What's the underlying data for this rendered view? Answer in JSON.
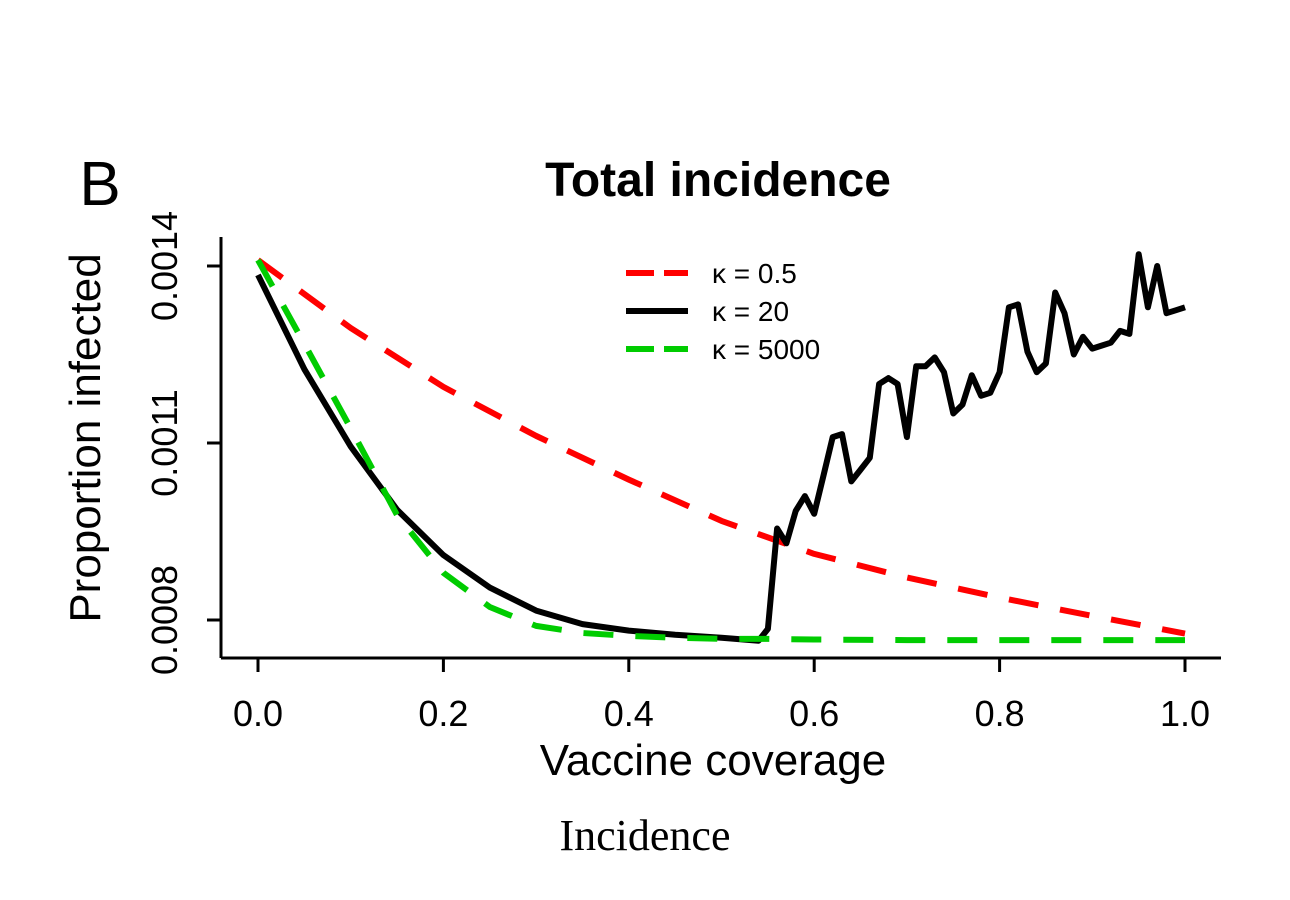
{
  "panel_label": "B",
  "caption": "Incidence",
  "colors": {
    "red": "#ff0000",
    "black": "#000000",
    "green": "#00cc00"
  },
  "chart_data": {
    "type": "line",
    "title": "Total incidence",
    "xlabel": "Vaccine coverage",
    "ylabel": "Proportion infected",
    "xlim": [
      0.0,
      1.0
    ],
    "ylim": [
      0.00074,
      0.00147
    ],
    "xticks": [
      0.0,
      0.2,
      0.4,
      0.6,
      0.8,
      1.0
    ],
    "xtick_labels": [
      "0.0",
      "0.2",
      "0.4",
      "0.6",
      "0.8",
      "1.0"
    ],
    "yticks": [
      0.0008,
      0.0011,
      0.0014
    ],
    "ytick_labels": [
      "0.0008",
      "0.0011",
      "0.0014"
    ],
    "legend_position": "top-center",
    "series": [
      {
        "name": "κ = 0.5",
        "color": "#ff0000",
        "style": "dashed",
        "x": [
          0.0,
          0.1,
          0.2,
          0.3,
          0.4,
          0.5,
          0.6,
          0.7,
          0.8,
          0.9,
          1.0
        ],
        "y": [
          0.00141,
          0.001295,
          0.001195,
          0.001112,
          0.001038,
          0.000968,
          0.000912,
          0.000872,
          0.000838,
          0.000807,
          0.000777
        ]
      },
      {
        "name": "κ = 20",
        "color": "#000000",
        "style": "solid",
        "x": [
          0.0,
          0.05,
          0.1,
          0.15,
          0.2,
          0.25,
          0.3,
          0.35,
          0.4,
          0.45,
          0.5,
          0.54,
          0.55,
          0.56,
          0.57,
          0.58,
          0.59,
          0.6,
          0.61,
          0.62,
          0.63,
          0.64,
          0.65,
          0.66,
          0.67,
          0.68,
          0.69,
          0.7,
          0.71,
          0.72,
          0.73,
          0.74,
          0.75,
          0.76,
          0.77,
          0.78,
          0.79,
          0.8,
          0.81,
          0.82,
          0.83,
          0.84,
          0.85,
          0.86,
          0.87,
          0.88,
          0.89,
          0.9,
          0.91,
          0.92,
          0.93,
          0.94,
          0.95,
          0.96,
          0.97,
          0.98,
          0.99,
          1.0
        ],
        "y": [
          0.001385,
          0.001225,
          0.001094,
          0.000987,
          0.00091,
          0.000855,
          0.000816,
          0.000793,
          0.000782,
          0.000775,
          0.00077,
          0.000765,
          0.000785,
          0.000955,
          0.00093,
          0.000985,
          0.00101,
          0.00098,
          0.001045,
          0.00111,
          0.001115,
          0.001035,
          0.001055,
          0.001075,
          0.0012,
          0.00121,
          0.0012,
          0.00111,
          0.00123,
          0.00123,
          0.001245,
          0.00122,
          0.00115,
          0.001165,
          0.001215,
          0.00118,
          0.001185,
          0.00122,
          0.00133,
          0.001335,
          0.001255,
          0.00122,
          0.001235,
          0.001355,
          0.00132,
          0.00125,
          0.00128,
          0.00126,
          0.001265,
          0.00127,
          0.00129,
          0.001285,
          0.00142,
          0.00133,
          0.0014,
          0.00132,
          0.001325,
          0.00133
        ]
      },
      {
        "name": "κ = 5000",
        "color": "#00cc00",
        "style": "dashed",
        "x": [
          0.0,
          0.05,
          0.1,
          0.15,
          0.2,
          0.25,
          0.3,
          0.35,
          0.4,
          0.45,
          0.5,
          0.55,
          0.6,
          0.7,
          0.8,
          0.9,
          1.0
        ],
        "y": [
          0.00141,
          0.001268,
          0.001125,
          0.000978,
          0.00088,
          0.000822,
          0.00079,
          0.000778,
          0.000773,
          0.00077,
          0.000768,
          0.000768,
          0.000767,
          0.000766,
          0.000766,
          0.000766,
          0.000766
        ]
      }
    ]
  }
}
